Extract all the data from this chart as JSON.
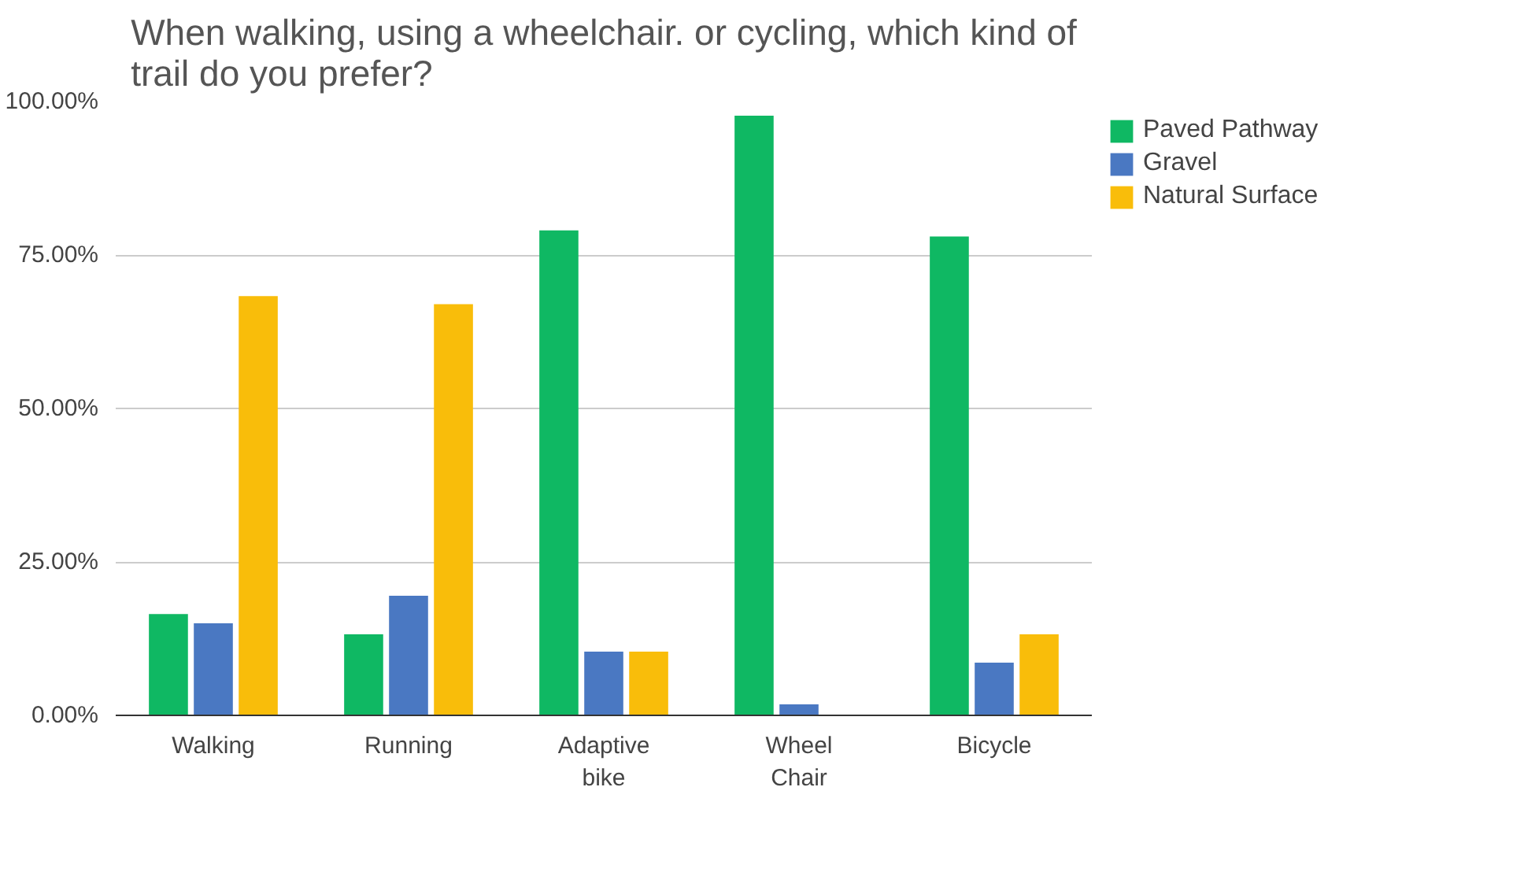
{
  "chart_data": {
    "type": "bar",
    "title": "When walking, using a wheelchair. or cycling, which kind of trail do you prefer?",
    "categories": [
      "Walking",
      "Running",
      "Adaptive bike",
      "Wheel Chair",
      "Bicycle"
    ],
    "series": [
      {
        "name": "Paved Pathway",
        "color": "#0fb863",
        "values": [
          16.5,
          13.2,
          79,
          97.7,
          78
        ]
      },
      {
        "name": "Gravel",
        "color": "#4a78c2",
        "values": [
          15,
          19.5,
          10.4,
          1.8,
          8.6
        ]
      },
      {
        "name": "Natural Surface",
        "color": "#f9bd0a",
        "values": [
          68.3,
          67,
          10.4,
          0,
          13.2
        ]
      }
    ],
    "ylim": [
      0,
      100
    ],
    "yticks": [
      {
        "value": 0,
        "label": "0.00%"
      },
      {
        "value": 25,
        "label": "25.00%"
      },
      {
        "value": 50,
        "label": "50.00%"
      },
      {
        "value": 75,
        "label": "75.00%"
      },
      {
        "value": 100,
        "label": "100.00%"
      }
    ],
    "grid": "y",
    "legend": "top right"
  }
}
